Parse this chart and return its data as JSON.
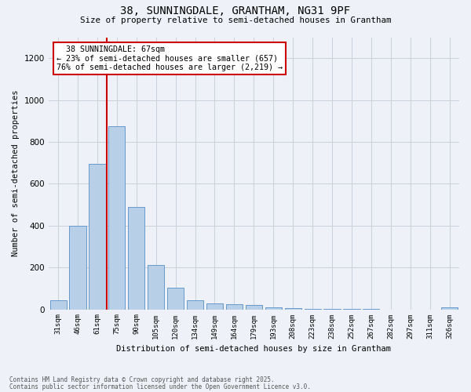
{
  "title_line1": "38, SUNNINGDALE, GRANTHAM, NG31 9PF",
  "title_line2": "Size of property relative to semi-detached houses in Grantham",
  "xlabel": "Distribution of semi-detached houses by size in Grantham",
  "ylabel": "Number of semi-detached properties",
  "categories": [
    "31sqm",
    "46sqm",
    "61sqm",
    "75sqm",
    "90sqm",
    "105sqm",
    "120sqm",
    "134sqm",
    "149sqm",
    "164sqm",
    "179sqm",
    "193sqm",
    "208sqm",
    "223sqm",
    "238sqm",
    "252sqm",
    "267sqm",
    "282sqm",
    "297sqm",
    "311sqm",
    "326sqm"
  ],
  "bar_heights": [
    45,
    400,
    695,
    875,
    490,
    210,
    105,
    45,
    30,
    25,
    20,
    10,
    5,
    3,
    3,
    2,
    1,
    0,
    0,
    0,
    10
  ],
  "bar_color": "#b8cfe8",
  "bar_edge_color": "#6699cc",
  "vline_x": 2.5,
  "vline_color": "#cc0000",
  "annotation_title": "38 SUNNINGDALE: 67sqm",
  "annotation_line2": "← 23% of semi-detached houses are smaller (657)",
  "annotation_line3": "76% of semi-detached houses are larger (2,219) →",
  "annotation_box_color": "#cc0000",
  "ylim": [
    0,
    1300
  ],
  "yticks": [
    0,
    200,
    400,
    600,
    800,
    1000,
    1200
  ],
  "footnote_line1": "Contains HM Land Registry data © Crown copyright and database right 2025.",
  "footnote_line2": "Contains public sector information licensed under the Open Government Licence v3.0.",
  "background_color": "#eef2f8",
  "grid_color": "#c8d0dc"
}
